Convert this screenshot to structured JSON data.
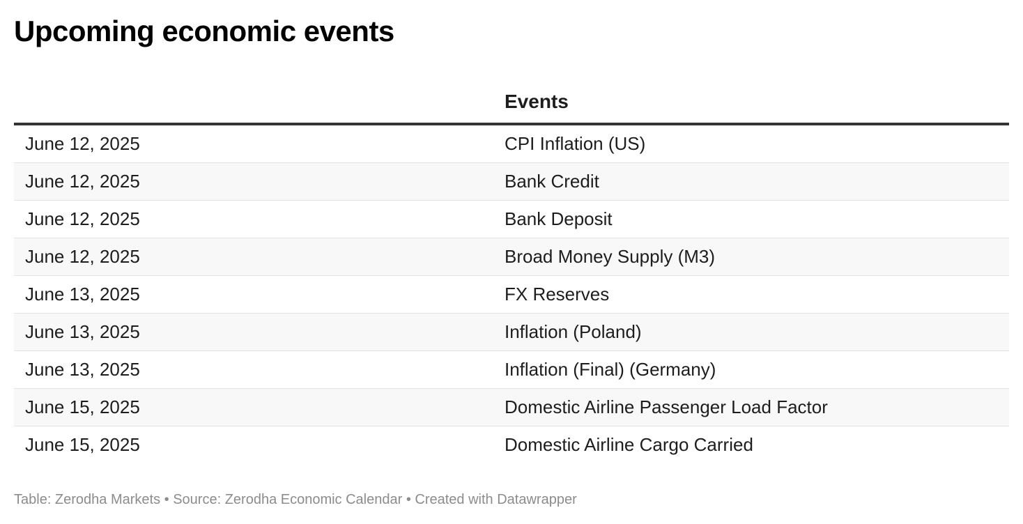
{
  "title": "Upcoming economic events",
  "table": {
    "columns": [
      "",
      "Events"
    ],
    "rows": [
      {
        "date": "June 12, 2025",
        "event": "CPI Inflation (US)"
      },
      {
        "date": "June 12, 2025",
        "event": "Bank Credit"
      },
      {
        "date": "June 12, 2025",
        "event": "Bank Deposit"
      },
      {
        "date": "June 12, 2025",
        "event": "Broad Money Supply (M3)"
      },
      {
        "date": "June 13, 2025",
        "event": "FX Reserves"
      },
      {
        "date": "June 13, 2025",
        "event": "Inflation (Poland)"
      },
      {
        "date": "June 13, 2025",
        "event": "Inflation (Final) (Germany)"
      },
      {
        "date": "June 15, 2025",
        "event": "Domestic Airline Passenger Load Factor"
      },
      {
        "date": "June 15, 2025",
        "event": "Domestic Airline Cargo Carried"
      }
    ]
  },
  "footer": "Table: Zerodha Markets • Source: Zerodha Economic Calendar • Created with Datawrapper",
  "colors": {
    "header_rule": "#333333",
    "row_divider": "#e3e3e3",
    "stripe": "#f8f8f8",
    "footer_text": "#8c8c8c"
  }
}
